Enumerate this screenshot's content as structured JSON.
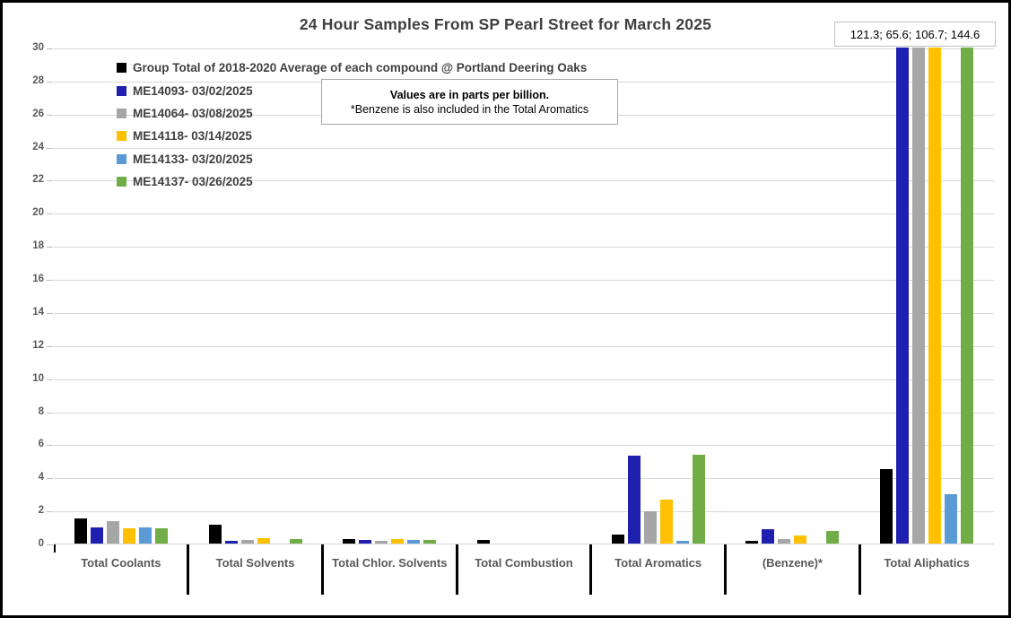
{
  "chart_data": {
    "type": "bar",
    "title": "24 Hour Samples From SP Pearl Street for March 2025",
    "ylabel": "",
    "xlabel": "",
    "ylim": [
      0,
      30
    ],
    "ytick_step": 2,
    "grid": true,
    "legend_position": "top-left",
    "clip_max": 30,
    "offscale_label": "121.3; 65.6; 106.7; 144.6",
    "note": {
      "line1": "Values are in parts per billion.",
      "line2": "*Benzene is also included in the Total Aromatics"
    },
    "categories": [
      "Total Coolants",
      "Total Solvents",
      "Total Chlor. Solvents",
      "Total Combustion",
      "Total Aromatics",
      "(Benzene)*",
      "Total Aliphatics"
    ],
    "series": [
      {
        "name": "Group Total of 2018-2020 Average of each compound @ Portland Deering Oaks",
        "color": "#000000",
        "values": [
          1.5,
          1.15,
          0.3,
          0.2,
          0.55,
          0.15,
          4.5
        ]
      },
      {
        "name": "ME14093- 03/02/2025",
        "color": "#1f1fb0",
        "values": [
          1.0,
          0.15,
          0.2,
          0,
          5.3,
          0.85,
          121.3
        ]
      },
      {
        "name": "ME14064- 03/08/2025",
        "color": "#a6a6a6",
        "values": [
          1.35,
          0.2,
          0.15,
          0,
          1.95,
          0.3,
          65.6
        ]
      },
      {
        "name": "ME14118- 03/14/2025",
        "color": "#ffc000",
        "values": [
          0.95,
          0.35,
          0.25,
          0,
          2.65,
          0.5,
          106.7
        ]
      },
      {
        "name": "ME14133- 03/20/2025",
        "color": "#5b9bd5",
        "values": [
          1.0,
          0,
          0.2,
          0,
          0.15,
          0,
          3.0
        ]
      },
      {
        "name": "ME14137- 03/26/2025",
        "color": "#70ad47",
        "values": [
          0.95,
          0.25,
          0.2,
          0,
          5.35,
          0.75,
          144.6
        ]
      }
    ]
  }
}
